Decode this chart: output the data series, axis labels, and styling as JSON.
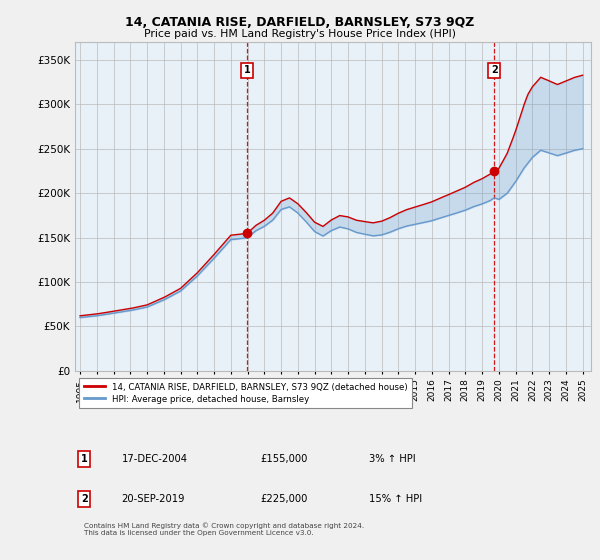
{
  "title": "14, CATANIA RISE, DARFIELD, BARNSLEY, S73 9QZ",
  "subtitle": "Price paid vs. HM Land Registry's House Price Index (HPI)",
  "ylabel_ticks": [
    "£0",
    "£50K",
    "£100K",
    "£150K",
    "£200K",
    "£250K",
    "£300K",
    "£350K"
  ],
  "ytick_vals": [
    0,
    50000,
    100000,
    150000,
    200000,
    250000,
    300000,
    350000
  ],
  "ylim": [
    0,
    370000
  ],
  "xlim_start": 1994.7,
  "xlim_end": 2025.5,
  "sale1_year": 2004.97,
  "sale1_price": 155000,
  "sale1_label": "1",
  "sale2_year": 2019.72,
  "sale2_price": 225000,
  "sale2_label": "2",
  "sale_marker_color": "#cc0000",
  "sale_vline_color": "#cc0000",
  "hpi_line_color": "#6699cc",
  "property_line_color": "#cc0000",
  "fill_color": "#ddeeff",
  "background_color": "#f0f0f0",
  "plot_bg_color": "#e8f0f8",
  "grid_color": "#bbbbbb",
  "legend_label_property": "14, CATANIA RISE, DARFIELD, BARNSLEY, S73 9QZ (detached house)",
  "legend_label_hpi": "HPI: Average price, detached house, Barnsley",
  "table_rows": [
    [
      "1",
      "17-DEC-2004",
      "£155,000",
      "3% ↑ HPI"
    ],
    [
      "2",
      "20-SEP-2019",
      "£225,000",
      "15% ↑ HPI"
    ]
  ],
  "footer_text": "Contains HM Land Registry data © Crown copyright and database right 2024.\nThis data is licensed under the Open Government Licence v3.0.",
  "xtick_years": [
    1995,
    1996,
    1997,
    1998,
    1999,
    2000,
    2001,
    2002,
    2003,
    2004,
    2005,
    2006,
    2007,
    2008,
    2009,
    2010,
    2011,
    2012,
    2013,
    2014,
    2015,
    2016,
    2017,
    2018,
    2019,
    2020,
    2021,
    2022,
    2023,
    2024,
    2025
  ]
}
